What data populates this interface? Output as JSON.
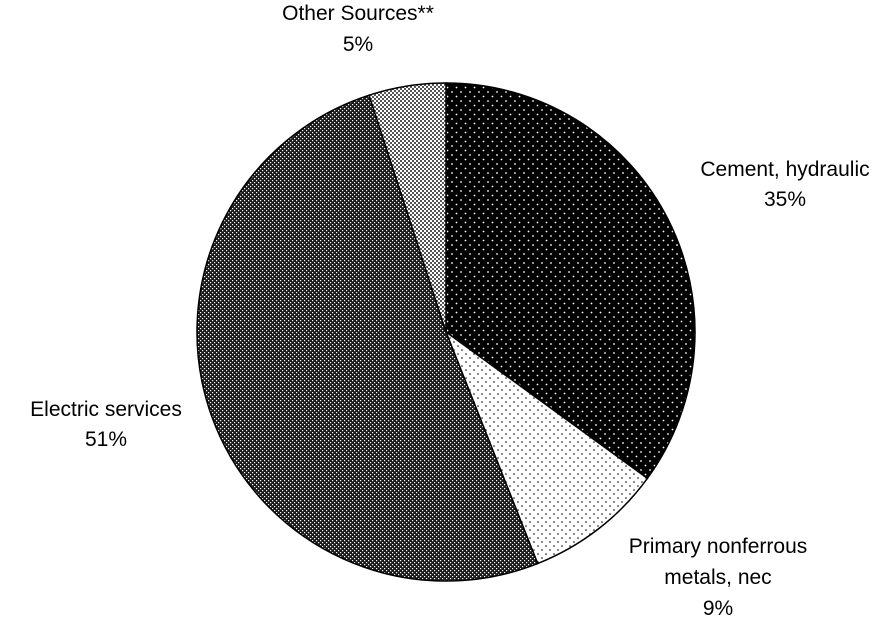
{
  "chart_data": {
    "type": "pie",
    "title": "",
    "start_angle_deg": 0,
    "direction": "clockwise",
    "slices": [
      {
        "label": "Cement, hydraulic",
        "value": 35,
        "value_label": "35%",
        "pattern": "dense-white-dots-on-black"
      },
      {
        "label": "Primary nonferrous metals, nec",
        "label_lines": [
          "Primary nonferrous",
          "metals, nec"
        ],
        "value": 9,
        "value_label": "9%",
        "pattern": "sparse-black-dots-on-white"
      },
      {
        "label": "Electric services",
        "value": 51,
        "value_label": "51%",
        "pattern": "fine-black-white-checker"
      },
      {
        "label": "Other Sources**",
        "value": 5,
        "value_label": "5%",
        "pattern": "medium-gray-dots"
      }
    ],
    "colors": {
      "outline": "#000000",
      "background": "#ffffff"
    }
  }
}
